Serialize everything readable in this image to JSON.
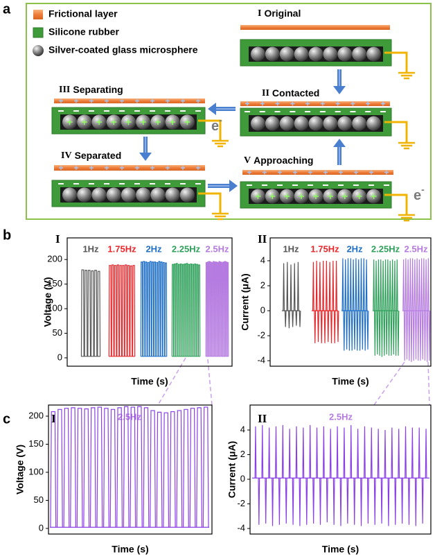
{
  "panel_labels": [
    "a",
    "b",
    "c"
  ],
  "diagram": {
    "legend": [
      "Frictional layer",
      "Silicone rubber",
      "Silver-coated glass microsphere"
    ],
    "stages": [
      {
        "numeral": "I",
        "label": "Original"
      },
      {
        "numeral": "II",
        "label": "Contacted"
      },
      {
        "numeral": "III",
        "label": "Separating"
      },
      {
        "numeral": "IV",
        "label": "Separated"
      },
      {
        "numeral": "V",
        "label": "Approaching"
      }
    ],
    "electron": "e",
    "electron_charge": "-"
  },
  "chart_data": [
    {
      "type": "line",
      "label": "I",
      "xlabel": "Time (s)",
      "ylabel": "Voltage (V)",
      "ylim": [
        -17,
        244
      ],
      "yticks": [
        0,
        50,
        100,
        150,
        200
      ],
      "baseline": 3,
      "series": [
        {
          "name": "1Hz",
          "color": "#555555",
          "peaks": [
            179,
            178,
            178,
            177,
            178,
            176
          ]
        },
        {
          "name": "1.75Hz",
          "color": "#e8262a",
          "peaks": [
            188,
            189,
            188,
            189,
            188,
            188,
            189,
            188,
            187,
            188
          ]
        },
        {
          "name": "2Hz",
          "color": "#1f6fc6",
          "peaks": [
            195,
            196,
            195,
            194,
            196,
            195,
            195,
            194,
            196,
            195,
            194,
            193
          ]
        },
        {
          "name": "2.25Hz",
          "color": "#2ea05a",
          "peaks": [
            190,
            191,
            192,
            190,
            191,
            190,
            191,
            192,
            190,
            191,
            190,
            191,
            190,
            189
          ]
        },
        {
          "name": "2.5Hz",
          "color": "#b57be0",
          "peaks": [
            194,
            195,
            196,
            195,
            194,
            196,
            195,
            195,
            194,
            196,
            195,
            194,
            195,
            196,
            195,
            194
          ]
        }
      ]
    },
    {
      "type": "line",
      "label": "II",
      "xlabel": "Time (s)",
      "ylabel": "Current (μA)",
      "ylim": [
        -4.44,
        5.83
      ],
      "yticks": [
        -4,
        -2,
        0,
        2,
        4
      ],
      "baseline": 0,
      "series": [
        {
          "name": "1Hz",
          "color": "#555555",
          "peaks": [
            3.8,
            3.9,
            3.7,
            3.8,
            3.9
          ],
          "troughs": [
            -1.3,
            -1.4,
            -1.3,
            -1.2,
            -1.3
          ]
        },
        {
          "name": "1.75Hz",
          "color": "#e8262a",
          "peaks": [
            3.9,
            4.0,
            3.9,
            4.0,
            4.0,
            3.9,
            4.0,
            4.0
          ],
          "troughs": [
            -2.6,
            -2.5,
            -2.6,
            -2.6,
            -2.5,
            -2.6,
            -2.6,
            -2.5
          ]
        },
        {
          "name": "2Hz",
          "color": "#1f6fc6",
          "peaks": [
            4.2,
            4.1,
            4.2,
            4.2,
            4.1,
            4.2,
            4.1,
            4.2,
            4.2,
            4.1
          ],
          "troughs": [
            -3.2,
            -3.1,
            -3.2,
            -3.2,
            -3.1,
            -3.2,
            -3.2,
            -3.1,
            -3.2,
            -3.1
          ]
        },
        {
          "name": "2.25Hz",
          "color": "#2ea05a",
          "peaks": [
            4.1,
            4.0,
            4.1,
            4.1,
            4.0,
            4.1,
            4.1,
            4.0,
            4.1,
            4.0,
            4.1
          ],
          "troughs": [
            -3.6,
            -3.5,
            -3.6,
            -3.7,
            -3.6,
            -3.5,
            -3.6,
            -3.6,
            -3.5,
            -3.6,
            -3.6
          ]
        },
        {
          "name": "2.5Hz",
          "color": "#b57be0",
          "peaks": [
            4.1,
            4.2,
            4.1,
            4.2,
            4.2,
            4.1,
            4.2,
            4.1,
            4.2,
            4.2,
            4.1,
            4.2
          ],
          "troughs": [
            -4.0,
            -3.9,
            -4.0,
            -4.1,
            -4.0,
            -3.9,
            -4.0,
            -4.0,
            -3.9,
            -4.0,
            -4.1,
            -4.0
          ]
        }
      ]
    },
    {
      "type": "line",
      "label": "I",
      "xlabel": "Time (s)",
      "ylabel": "Voltage (V)",
      "ylim": [
        -10,
        219.8
      ],
      "yticks": [
        0,
        50,
        100,
        150,
        200
      ],
      "baseline": 2,
      "series": [
        {
          "name": "2.5Hz",
          "color": "#8a3ee6",
          "label_color": "#b57be0",
          "peaks": [
            208,
            212,
            214,
            215,
            214,
            213,
            215,
            216,
            214,
            212,
            215,
            217,
            216,
            217,
            215,
            210,
            207,
            206,
            208,
            210,
            212,
            214,
            215,
            216
          ]
        }
      ]
    },
    {
      "type": "line",
      "label": "II",
      "xlabel": "Time (s)",
      "ylabel": "Current (μA)",
      "ylim": [
        -4.45,
        6.03
      ],
      "yticks": [
        -4,
        -2,
        0,
        2,
        4
      ],
      "baseline": 0.1,
      "series": [
        {
          "name": "2.5Hz",
          "color": "#8a3ee6",
          "label_color": "#b57be0",
          "peaks": [
            4.3,
            4.4,
            4.2,
            4.3,
            4.4,
            4.1,
            4.3,
            4.2,
            4.4,
            4.2,
            4.3,
            4.1,
            4.3,
            4.2,
            4.4,
            4.1,
            4.3,
            4.2,
            4.1,
            4.0,
            4.2,
            4.1,
            4.3,
            4.2,
            4.2,
            4.1
          ],
          "troughs": [
            -3.7,
            -3.6,
            -3.8,
            -3.7,
            -3.6,
            -3.7,
            -3.8,
            -3.7,
            -3.6,
            -3.7,
            -3.5,
            -3.7,
            -3.8,
            -3.6,
            -3.7,
            -3.8,
            -3.6,
            -3.7,
            -3.6,
            -3.8,
            -3.7,
            -3.6,
            -3.7,
            -3.8,
            -3.6
          ]
        }
      ]
    }
  ]
}
